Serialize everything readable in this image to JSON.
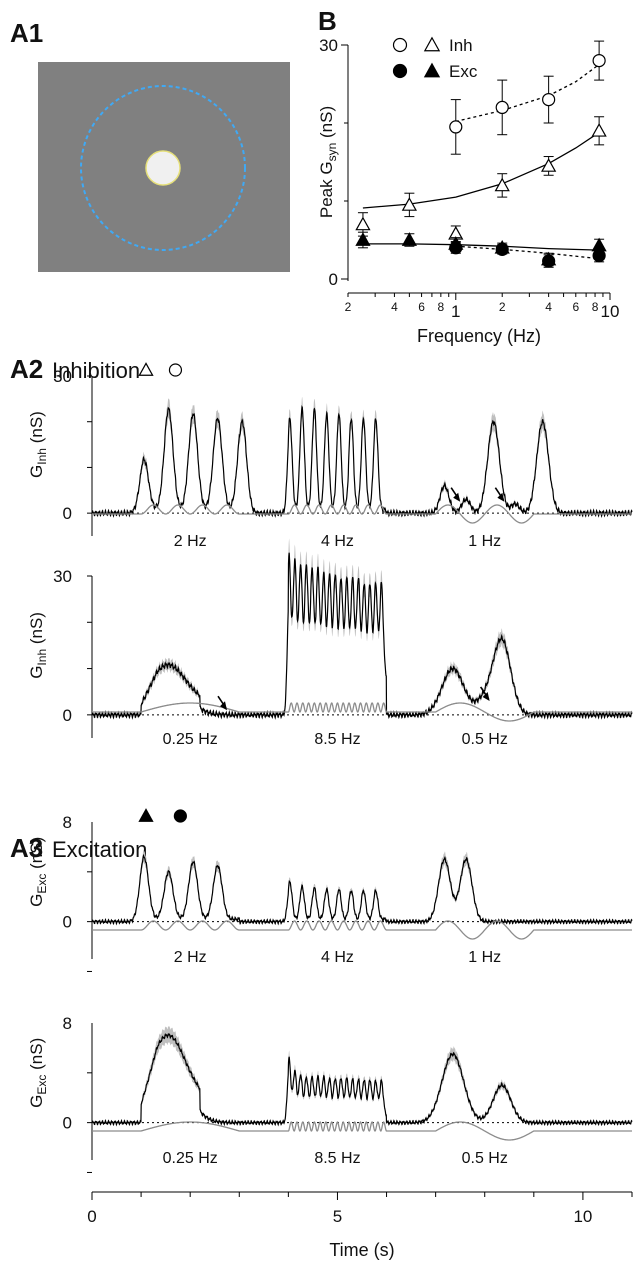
{
  "panels": {
    "a1": {
      "label": "A1"
    },
    "b": {
      "label": "B"
    },
    "a2": {
      "label": "A2",
      "title": "Inhibition"
    },
    "a3": {
      "label": "A3",
      "title": "Excitation"
    }
  },
  "colors": {
    "stimulus_bg": "#808080",
    "stimulus_spot": "#f0f0f0",
    "stimulus_spot_edge": "#e6e07a",
    "stimulus_ring": "#3fa9f5",
    "trace": "#000000",
    "trace_sem": "#bfbfbf",
    "stim_waveform": "#8c8c8c"
  },
  "chart_data": [
    {
      "id": "B",
      "type": "scatter",
      "xscale": "log",
      "xlabel": "Frequency (Hz)",
      "ylabel_main": "Peak G",
      "ylabel_sub": "syn",
      "ylabel_unit": " (nS)",
      "xlim": [
        0.2,
        10
      ],
      "ylim": [
        0,
        30
      ],
      "yticks": [
        0,
        30
      ],
      "xtick_labels": [
        {
          "v": 0.2,
          "t": "2"
        },
        {
          "v": 0.4,
          "t": "4"
        },
        {
          "v": 0.6,
          "t": "6"
        },
        {
          "v": 0.8,
          "t": "8"
        },
        {
          "v": 1,
          "t": "1"
        },
        {
          "v": 2,
          "t": "2"
        },
        {
          "v": 4,
          "t": "4"
        },
        {
          "v": 6,
          "t": "6"
        },
        {
          "v": 8,
          "t": "8"
        },
        {
          "v": 10,
          "t": "10"
        }
      ],
      "xminor": [
        0.3,
        0.5,
        0.7,
        0.9,
        3,
        5,
        7,
        9
      ],
      "legend": [
        {
          "header": "Inh",
          "markers": [
            "open-circle",
            "open-triangle"
          ]
        },
        {
          "header": "Exc",
          "markers": [
            "filled-circle",
            "filled-triangle"
          ]
        }
      ],
      "series": [
        {
          "name": "Inh",
          "marker": "open-triangle",
          "x": [
            0.25,
            0.5,
            1,
            2,
            4,
            8.5
          ],
          "y": [
            7,
            9.5,
            5.8,
            12,
            14.5,
            19
          ],
          "err": [
            1.5,
            1.5,
            1,
            1.5,
            1.2,
            1.8
          ],
          "fit": [
            [
              0.25,
              9.1
            ],
            [
              0.5,
              9.6
            ],
            [
              1,
              10.5
            ],
            [
              2,
              12.2
            ],
            [
              4,
              14.8
            ],
            [
              6,
              16.8
            ],
            [
              8.5,
              18.8
            ]
          ],
          "fit_style": "solid"
        },
        {
          "name": "Inh",
          "marker": "open-circle",
          "x": [
            1,
            2,
            4,
            8.5
          ],
          "y": [
            19.5,
            22,
            23,
            28
          ],
          "err": [
            3.5,
            3.5,
            3,
            2.5
          ],
          "fit": [
            [
              1,
              20.2
            ],
            [
              2,
              21.6
            ],
            [
              4,
              23.5
            ],
            [
              6,
              25.3
            ],
            [
              8.5,
              27.5
            ]
          ],
          "fit_style": "dotted"
        },
        {
          "name": "Exc",
          "marker": "filled-triangle",
          "x": [
            0.25,
            0.5,
            1,
            2,
            4,
            8.5
          ],
          "y": [
            5,
            5,
            4.5,
            4,
            2.5,
            4.3
          ],
          "err": [
            1,
            0.8,
            0.8,
            0.6,
            0.8,
            0.8
          ],
          "fit": [
            [
              0.25,
              4.5
            ],
            [
              0.5,
              4.5
            ],
            [
              1,
              4.4
            ],
            [
              2,
              4.2
            ],
            [
              4,
              3.9
            ],
            [
              8.5,
              3.7
            ]
          ],
          "fit_style": "solid"
        },
        {
          "name": "Exc",
          "marker": "filled-circle",
          "x": [
            1,
            2,
            4,
            8.5
          ],
          "y": [
            4,
            3.8,
            2.3,
            3
          ],
          "err": [
            0.7,
            0.6,
            0.8,
            0.8
          ],
          "fit": [
            [
              1,
              4.2
            ],
            [
              2,
              3.8
            ],
            [
              4,
              3.3
            ],
            [
              8.5,
              2.6
            ]
          ],
          "fit_style": "dotted"
        }
      ]
    },
    {
      "id": "A2-top",
      "type": "line",
      "ylabel_main": "G",
      "ylabel_sub": "Inh",
      "ylabel_unit": " (nS)",
      "ylim": [
        -5,
        30
      ],
      "yticks": [
        0,
        30
      ],
      "blocks": [
        {
          "label": "2 Hz",
          "freq": 2,
          "t0": 1,
          "t1": 3,
          "peaks": [
            11,
            22,
            21,
            20,
            20
          ]
        },
        {
          "label": "4 Hz",
          "freq": 4,
          "t0": 4,
          "t1": 6,
          "peaks": [
            20,
            22,
            22,
            21,
            21,
            20,
            20,
            20
          ]
        },
        {
          "label": "1 Hz",
          "freq": 1,
          "t0": 7,
          "t1": 9,
          "peaks": [
            6,
            3,
            20,
            2,
            20
          ]
        }
      ],
      "markers": [
        {
          "symbol": "open-triangle",
          "t": 1.1
        },
        {
          "symbol": "open-circle",
          "t": 1.7
        }
      ],
      "arrows": [
        {
          "t": 7.5,
          "y": 2.5
        },
        {
          "t": 8.4,
          "y": 2.5
        }
      ]
    },
    {
      "id": "A2-bottom",
      "type": "line",
      "ylabel_main": "G",
      "ylabel_sub": "Inh",
      "ylabel_unit": " (nS)",
      "ylim": [
        -5,
        30
      ],
      "yticks": [
        0,
        30
      ],
      "blocks": [
        {
          "label": "0.25 Hz",
          "freq": 0.25,
          "t0": 1,
          "t1": 3,
          "peaks": [
            8
          ]
        },
        {
          "label": "8.5 Hz",
          "freq": 8.5,
          "t0": 4,
          "t1": 6,
          "peaks": [
            26,
            25,
            24,
            24,
            23,
            23,
            22,
            22,
            22,
            21,
            21,
            21,
            21,
            20,
            20,
            20,
            20
          ]
        },
        {
          "label": "0.5 Hz",
          "freq": 0.5,
          "t0": 7,
          "t1": 9,
          "peaks": [
            10,
            16
          ]
        }
      ],
      "arrows": [
        {
          "t": 2.75,
          "y": 1
        },
        {
          "t": 8.1,
          "y": 3
        }
      ]
    },
    {
      "id": "A3-top",
      "type": "line",
      "ylabel_main": "G",
      "ylabel_sub": "Exc",
      "ylabel_unit": " (nS)",
      "ylim": [
        -3,
        8
      ],
      "yticks": [
        0,
        8
      ],
      "blocks": [
        {
          "label": "2 Hz",
          "freq": 2,
          "t0": 1,
          "t1": 3,
          "peaks": [
            5,
            3.8,
            4.6,
            4.3
          ]
        },
        {
          "label": "4 Hz",
          "freq": 4,
          "t0": 4,
          "t1": 6,
          "peaks": [
            3,
            2.6,
            2.5,
            2.4,
            2.4,
            2.3,
            2.3,
            2.3
          ]
        },
        {
          "label": "1 Hz",
          "freq": 1,
          "t0": 7,
          "t1": 9,
          "peaks": [
            5,
            5
          ]
        }
      ],
      "markers": [
        {
          "symbol": "filled-triangle",
          "t": 1.1
        },
        {
          "symbol": "filled-circle",
          "t": 1.8
        }
      ]
    },
    {
      "id": "A3-bottom",
      "type": "line",
      "ylabel_main": "G",
      "ylabel_sub": "Exc",
      "ylabel_unit": " (nS)",
      "ylim": [
        -3,
        8
      ],
      "yticks": [
        0,
        8
      ],
      "xlabel": "Time (s)",
      "xlim": [
        0,
        11
      ],
      "xticks": [
        0,
        5,
        10
      ],
      "blocks": [
        {
          "label": "0.25 Hz",
          "freq": 0.25,
          "t0": 1,
          "t1": 3,
          "peaks": [
            5.2
          ]
        },
        {
          "label": "8.5 Hz",
          "freq": 8.5,
          "t0": 4,
          "t1": 6,
          "peaks": [
            4.5,
            3.5,
            3.2,
            3,
            3,
            3,
            3,
            2.9,
            2.9,
            2.9,
            2.9,
            2.8,
            2.8,
            2.8,
            2.8,
            2.7,
            2.7
          ]
        },
        {
          "label": "0.5 Hz",
          "freq": 0.5,
          "t0": 7,
          "t1": 9,
          "peaks": [
            5.5,
            3
          ]
        }
      ]
    }
  ]
}
